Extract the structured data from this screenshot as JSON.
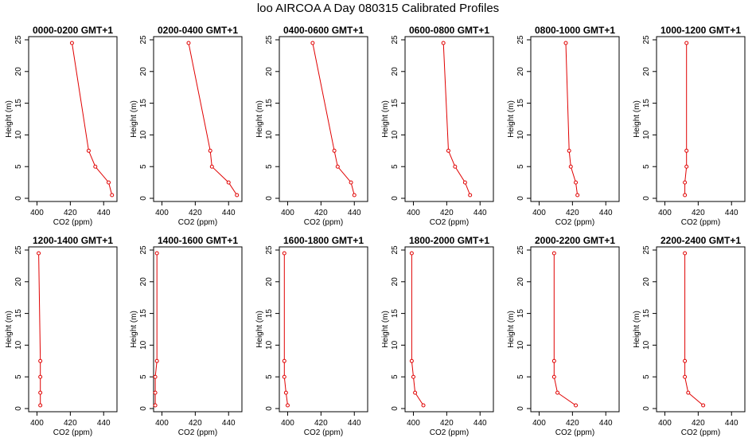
{
  "title": "loo AIRCOA A  Day 080315  Calibrated Profiles",
  "chart_data": {
    "type": "line",
    "xlabel": "CO2 (ppm)",
    "ylabel": "Height (m)",
    "xlim": [
      395,
      448
    ],
    "ylim": [
      -0.5,
      25.5
    ],
    "xticks": [
      400,
      420,
      440
    ],
    "yticks": [
      0,
      5,
      10,
      15,
      20,
      25
    ],
    "line_color": "#e00000",
    "panels": [
      {
        "title": "0000-0200 GMT+1",
        "x": [
          445,
          443,
          435,
          431,
          421
        ],
        "y": [
          0.5,
          2.5,
          5,
          7.5,
          24.5
        ]
      },
      {
        "title": "0200-0400 GMT+1",
        "x": [
          445,
          440,
          430,
          429,
          416
        ],
        "y": [
          0.5,
          2.5,
          5,
          7.5,
          24.5
        ]
      },
      {
        "title": "0400-0600 GMT+1",
        "x": [
          440,
          438,
          430,
          428,
          415
        ],
        "y": [
          0.5,
          2.5,
          5,
          7.5,
          24.5
        ]
      },
      {
        "title": "0600-0800 GMT+1",
        "x": [
          434,
          431,
          425,
          421,
          418
        ],
        "y": [
          0.5,
          2.5,
          5,
          7.5,
          24.5
        ]
      },
      {
        "title": "0800-1000 GMT+1",
        "x": [
          423,
          422,
          419,
          418,
          416
        ],
        "y": [
          0.5,
          2.5,
          5,
          7.5,
          24.5
        ]
      },
      {
        "title": "1000-1200 GMT+1",
        "x": [
          412,
          412,
          413,
          413,
          413
        ],
        "y": [
          0.5,
          2.5,
          5,
          7.5,
          24.5
        ]
      },
      {
        "title": "1200-1400 GMT+1",
        "x": [
          402,
          402,
          402,
          402,
          401
        ],
        "y": [
          0.5,
          2.5,
          5,
          7.5,
          24.5
        ]
      },
      {
        "title": "1400-1600 GMT+1",
        "x": [
          396,
          396,
          396,
          397,
          397
        ],
        "y": [
          0.5,
          2.5,
          5,
          7.5,
          24.5
        ]
      },
      {
        "title": "1600-1800 GMT+1",
        "x": [
          400,
          399,
          398,
          398,
          398
        ],
        "y": [
          0.5,
          2.5,
          5,
          7.5,
          24.5
        ]
      },
      {
        "title": "1800-2000 GMT+1",
        "x": [
          406,
          401,
          400,
          399,
          399
        ],
        "y": [
          0.5,
          2.5,
          5,
          7.5,
          24.5
        ]
      },
      {
        "title": "2000-2200 GMT+1",
        "x": [
          422,
          411,
          409,
          409,
          409
        ],
        "y": [
          0.5,
          2.5,
          5,
          7.5,
          24.5
        ]
      },
      {
        "title": "2200-2400 GMT+1",
        "x": [
          423,
          414,
          412,
          412,
          412
        ],
        "y": [
          0.5,
          2.5,
          5,
          7.5,
          24.5
        ]
      }
    ]
  }
}
